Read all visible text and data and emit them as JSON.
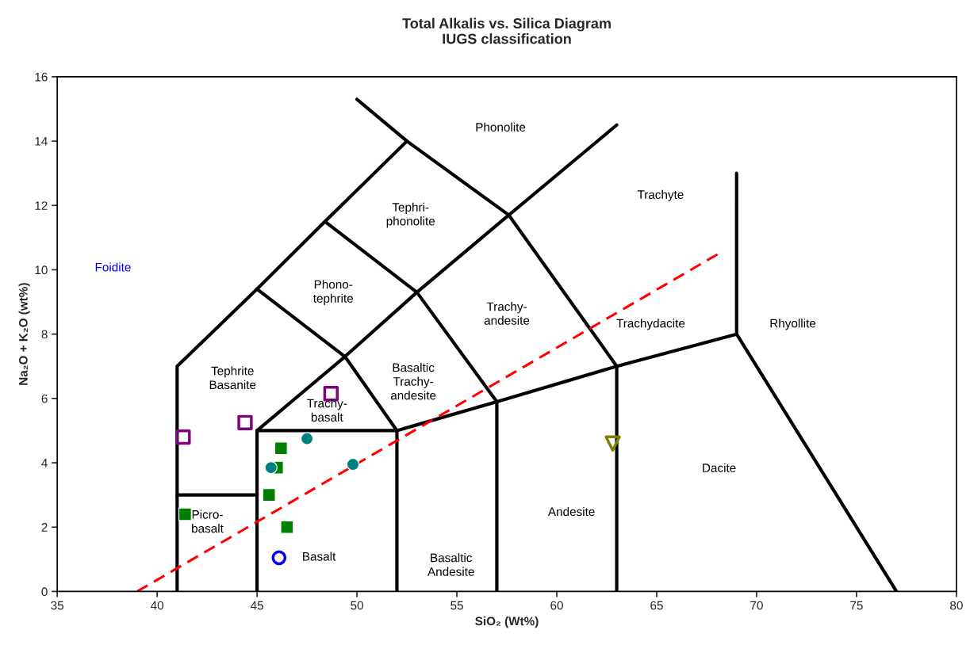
{
  "chart_data": {
    "type": "scatter",
    "title": "Total Alkalis vs. Silica Diagram\nIUGS classification",
    "xlabel": "SiO₂ (Wt%)",
    "ylabel": "Na₂O + K₂O (wt%)",
    "xlim": [
      35,
      80
    ],
    "xticks": [
      35,
      40,
      45,
      50,
      55,
      60,
      65,
      70,
      75,
      80
    ],
    "ylim": [
      0,
      16
    ],
    "yticks": [
      0,
      2,
      4,
      6,
      8,
      10,
      12,
      14,
      16
    ],
    "grid": false,
    "legend": false,
    "series": [
      {
        "type": "line",
        "color": "#000000",
        "line_style": "solid",
        "marker": "none",
        "x": [
          41,
          41,
          45,
          48.4,
          52.5
        ],
        "values": [
          0,
          7,
          9.4,
          11.5,
          14
        ]
      },
      {
        "type": "line",
        "color": "#000000",
        "line_style": "solid",
        "marker": "none",
        "x": [
          50,
          52.5,
          57.6,
          63
        ],
        "values": [
          15.3,
          14,
          11.7,
          7
        ]
      },
      {
        "type": "line",
        "color": "#000000",
        "line_style": "solid",
        "marker": "none",
        "x": [
          63,
          63,
          69,
          69
        ],
        "values": [
          0,
          7,
          8,
          13
        ]
      },
      {
        "type": "line",
        "color": "#000000",
        "line_style": "solid",
        "marker": "none",
        "x": [
          69,
          77
        ],
        "values": [
          8,
          0
        ]
      },
      {
        "type": "line",
        "color": "#000000",
        "line_style": "solid",
        "marker": "none",
        "x": [
          52,
          57,
          63
        ],
        "values": [
          5,
          5.9,
          7
        ]
      },
      {
        "type": "line",
        "color": "#000000",
        "line_style": "solid",
        "marker": "none",
        "x": [
          57,
          57
        ],
        "values": [
          0,
          5.9
        ]
      },
      {
        "type": "line",
        "color": "#000000",
        "line_style": "solid",
        "marker": "none",
        "x": [
          45,
          45,
          52,
          52
        ],
        "values": [
          0,
          5,
          5,
          0
        ]
      },
      {
        "type": "line",
        "color": "#000000",
        "line_style": "solid",
        "marker": "none",
        "x": [
          41,
          45
        ],
        "values": [
          3,
          3
        ]
      },
      {
        "type": "line",
        "color": "#000000",
        "line_style": "solid",
        "marker": "none",
        "x": [
          45,
          49.4,
          52
        ],
        "values": [
          5,
          7.3,
          5
        ]
      },
      {
        "type": "line",
        "color": "#000000",
        "line_style": "solid",
        "marker": "none",
        "x": [
          45,
          49.4,
          53,
          57
        ],
        "values": [
          9.4,
          7.3,
          9.3,
          5.9
        ]
      },
      {
        "type": "line",
        "color": "#000000",
        "line_style": "solid",
        "marker": "none",
        "x": [
          48.4,
          53,
          57.6,
          63
        ],
        "values": [
          11.5,
          9.3,
          11.7,
          14.5
        ]
      },
      {
        "type": "line",
        "color": "#ff0000",
        "line_style": "dashed",
        "marker": "none",
        "x": [
          39,
          68.1
        ],
        "values": [
          0,
          10.5
        ]
      },
      {
        "color": "#800080",
        "marker": "square",
        "x": [
          41.3,
          44.4,
          48.7
        ],
        "values": [
          4.8,
          5.25,
          6.15
        ]
      },
      {
        "color": "#008000",
        "marker": "square",
        "x": [
          46.2,
          46.0,
          45.6,
          46.5,
          41.4
        ],
        "values": [
          4.45,
          3.85,
          3.0,
          2.0,
          2.4
        ]
      },
      {
        "color": "#008080",
        "marker": "circle",
        "x": [
          47.5,
          45.7,
          49.8
        ],
        "values": [
          4.75,
          3.85,
          3.95
        ]
      },
      {
        "color": "#0000ff",
        "marker": "circle",
        "x": [
          46.1
        ],
        "values": [
          1.05
        ]
      },
      {
        "color": "#808000",
        "marker": "triangle",
        "x": [
          62.8
        ],
        "values": [
          4.6
        ]
      }
    ],
    "annotations": [
      "Phonolite",
      "Tephri-\nphonolite",
      "Trachyte",
      "Foidite",
      "Phono-\ntephrite",
      "Trachy-\nandesite",
      "Trachydacite",
      "Rhyollite",
      "Tephrite\nBasanite",
      "Basaltic\nTrachy-\nandesite",
      "Trachy-\nbasalt",
      "Dacite",
      "Andesite",
      "Picro-\nbasalt",
      "Basalt",
      "Basaltic\nAndesite"
    ]
  }
}
